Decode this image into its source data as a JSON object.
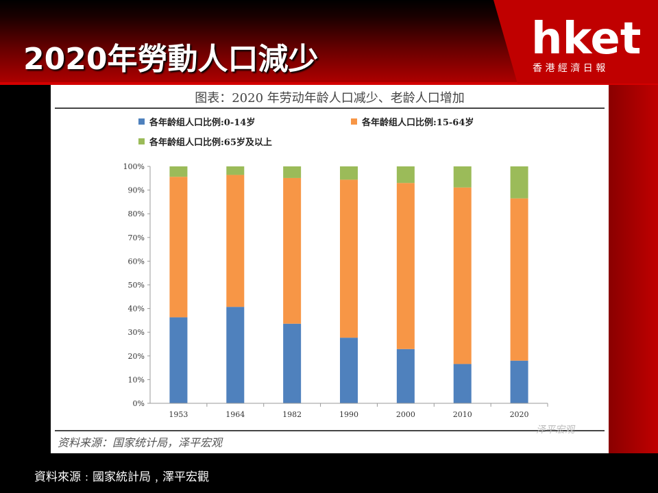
{
  "header": {
    "title": "2020年勞動人口減少",
    "logo_text": "hket",
    "logo_subtitle": "香 港 經 濟 日 報"
  },
  "footer": {
    "source": "資料來源﹕國家統計局﹐澤平宏觀"
  },
  "chart_data": {
    "type": "bar",
    "stacked": true,
    "title": "图表：2020 年劳动年龄人口减少、老龄人口增加",
    "categories": [
      "1953",
      "1964",
      "1982",
      "1990",
      "2000",
      "2010",
      "2020"
    ],
    "series": [
      {
        "name": "各年龄组人口比例:0-14岁",
        "color": "#4f81bd",
        "values": [
          36.3,
          40.7,
          33.6,
          27.7,
          22.9,
          16.6,
          18.0
        ]
      },
      {
        "name": "各年龄组人口比例:15-64岁",
        "color": "#f79646",
        "values": [
          59.3,
          55.7,
          61.5,
          66.7,
          70.1,
          74.5,
          68.5
        ]
      },
      {
        "name": "各年龄组人口比例:65岁及以上",
        "color": "#9bbb59",
        "values": [
          4.4,
          3.6,
          4.9,
          5.6,
          7.0,
          8.9,
          13.5
        ]
      }
    ],
    "y_ticks": [
      "100%",
      "90%",
      "80%",
      "70%",
      "60%",
      "50%",
      "40%",
      "30%",
      "20%",
      "10%",
      "0%"
    ],
    "ylim": [
      0,
      100
    ],
    "legend_position": "top",
    "source_note": "资料来源：国家统计局，泽平宏观",
    "watermark": "泽平宏观"
  }
}
